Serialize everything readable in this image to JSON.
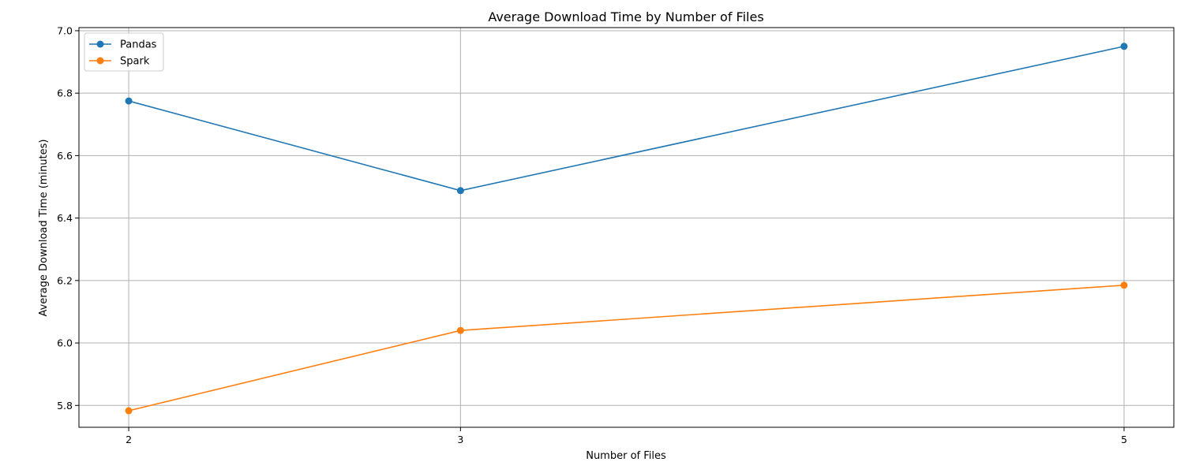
{
  "chart_data": {
    "type": "line",
    "title": "Average Download Time by Number of Files",
    "xlabel": "Number of Files",
    "ylabel": "Average Download Time (minutes)",
    "x": [
      2,
      3,
      5
    ],
    "x_tick_labels": [
      "2",
      "3",
      "5"
    ],
    "xlim": [
      1.85,
      5.15
    ],
    "ylim": [
      5.73,
      7.01
    ],
    "y_ticks": [
      5.8,
      6.0,
      6.2,
      6.4,
      6.6,
      6.8,
      7.0
    ],
    "y_tick_labels": [
      "5.8",
      "6.0",
      "6.2",
      "6.4",
      "6.6",
      "6.8",
      "7.0"
    ],
    "grid": true,
    "legend_position": "upper-left",
    "series": [
      {
        "name": "Pandas",
        "color": "#1f77b4",
        "values": [
          6.775,
          6.488,
          6.95
        ]
      },
      {
        "name": "Spark",
        "color": "#ff7f0e",
        "values": [
          5.783,
          6.04,
          6.185
        ]
      }
    ]
  }
}
